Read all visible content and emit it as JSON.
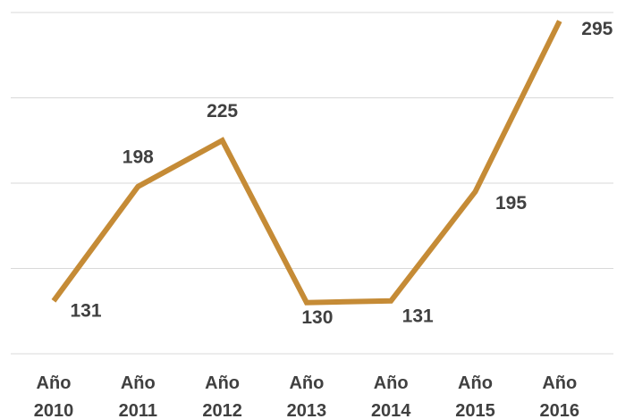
{
  "chart_data": {
    "type": "line",
    "categories": [
      "Año 2010",
      "Año 2011",
      "Año 2012",
      "Año 2013",
      "Año 2014",
      "Año 2015",
      "Año 2016"
    ],
    "series": [
      {
        "color": "#c58b36",
        "values": [
          131,
          198,
          225,
          130,
          131,
          195,
          295
        ]
      }
    ],
    "ylim": [
      100,
      300
    ],
    "yticks": [
      100,
      150,
      200,
      250,
      300
    ],
    "grid": true
  }
}
